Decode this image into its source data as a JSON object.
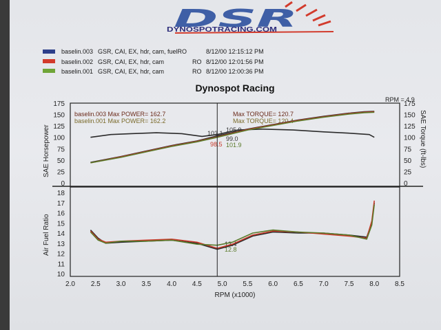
{
  "logo": {
    "mark": "DSR",
    "url_text": "DYNOSPOTRACING.COM"
  },
  "legend": [
    {
      "name": "baselin.003",
      "desc": "GSR, CAI, EX, hdr, cam, fuelRO",
      "date": "8/12/00 12:15:12 PM",
      "color": "#2d3f8a"
    },
    {
      "name": "baselin.002",
      "desc": "GSR, CAI, EX, hdr, cam",
      "mode": "RO",
      "date": "8/12/00 12:01:56 PM",
      "color": "#d23b2c"
    },
    {
      "name": "baselin.001",
      "desc": "GSR, CAI, EX, hdr, cam",
      "mode": "RO",
      "date": "8/12/00 12:00:36 PM",
      "color": "#6fa538"
    }
  ],
  "chart_data": {
    "type": "line",
    "title": "Dynospot Racing",
    "cursor_readout": "RPM = 4.9",
    "xlabel": "RPM (x1000)",
    "xlim": [
      2.0,
      8.5
    ],
    "xticks": [
      "2.0",
      "2.5",
      "3.0",
      "3.5",
      "4.0",
      "4.5",
      "5.0",
      "5.5",
      "6.0",
      "6.5",
      "7.0",
      "7.5",
      "8.0",
      "8.5"
    ],
    "cursor_x": 4.9,
    "top_panel": {
      "ylabel_left": "SAE Horsepower",
      "ylabel_right": "SAE Torque (ft-lbs)",
      "ylim": [
        0,
        175
      ],
      "yticks_left": [
        "175",
        "150",
        "125",
        "100",
        "75",
        "50",
        "25",
        "0"
      ],
      "yticks_right": [
        "175",
        "150",
        "125",
        "100",
        "75",
        "50",
        "25",
        "0"
      ],
      "power_labels": [
        {
          "text": "baselin.003  Max POWER= 162.7",
          "color": "#6a2a1a"
        },
        {
          "text": "baselin.001  Max POWER= 162.2",
          "color": "#7a6a2a"
        }
      ],
      "torque_labels": [
        {
          "text": "Max TORQUE= 120.7",
          "color": "#6a2a1a"
        },
        {
          "text": "Max TORQUE= 120.4",
          "color": "#7a6a2a"
        }
      ],
      "cursor_values": [
        {
          "text": "103.1",
          "color": "#333"
        },
        {
          "text": "105.9",
          "color": "#333"
        },
        {
          "text": "99.0",
          "color": "#333"
        },
        {
          "text": "98.5",
          "color": "#c83a2a"
        },
        {
          "text": "101.9",
          "color": "#5a7a2a"
        }
      ],
      "series": [
        {
          "name": "baselin.003",
          "kind": "power",
          "color": "#2a2a2a",
          "x": [
            2.4,
            3.0,
            3.5,
            4.0,
            4.5,
            4.9,
            5.5,
            6.0,
            6.5,
            7.0,
            7.5,
            7.8,
            8.0
          ],
          "y": [
            45,
            58,
            70,
            82,
            92,
            103,
            118,
            128,
            138,
            146,
            153,
            156,
            157
          ]
        },
        {
          "name": "baselin.003",
          "kind": "torque",
          "color": "#2a2a2a",
          "x": [
            2.4,
            2.8,
            3.2,
            3.7,
            4.2,
            4.6,
            4.9,
            5.3,
            5.8,
            6.4,
            7.0,
            7.5,
            7.9,
            8.0
          ],
          "y": [
            100,
            106,
            108,
            110,
            108,
            102,
            106,
            116,
            118,
            116,
            112,
            109,
            106,
            100
          ]
        },
        {
          "name": "baselin.002",
          "kind": "power",
          "color": "#c83a2a",
          "x": [
            2.4,
            3.0,
            3.5,
            4.0,
            4.5,
            4.9,
            5.5,
            6.0,
            6.5,
            7.0,
            7.5,
            7.8,
            8.0
          ],
          "y": [
            44,
            57,
            69,
            81,
            91,
            101,
            117,
            127,
            137,
            145,
            152,
            155,
            156
          ]
        },
        {
          "name": "baselin.001",
          "kind": "power",
          "color": "#5a7a2a",
          "x": [
            2.4,
            3.0,
            3.5,
            4.0,
            4.5,
            4.9,
            5.5,
            6.0,
            6.5,
            7.0,
            7.5,
            7.8,
            8.0
          ],
          "y": [
            44,
            56,
            68,
            80,
            90,
            100,
            116,
            126,
            136,
            144,
            151,
            154,
            155
          ]
        }
      ]
    },
    "bottom_panel": {
      "ylabel_left": "Air Fuel Ratio",
      "ylim": [
        10,
        18
      ],
      "yticks_left": [
        "18",
        "17",
        "16",
        "15",
        "14",
        "13",
        "12",
        "11",
        "10"
      ],
      "cursor_values": [
        {
          "text": "12.4",
          "color": "#333"
        },
        {
          "text": "12.8",
          "color": "#5a7a2a"
        }
      ],
      "series": [
        {
          "name": "baselin.003",
          "color": "#2a2a2a",
          "x": [
            2.4,
            2.55,
            2.7,
            3.0,
            3.5,
            4.0,
            4.5,
            4.9,
            5.2,
            5.6,
            6.0,
            6.5,
            7.0,
            7.5,
            7.85,
            7.95,
            8.0
          ],
          "y": [
            14.3,
            13.5,
            13.0,
            13.1,
            13.2,
            13.3,
            13.0,
            12.4,
            12.8,
            13.7,
            14.1,
            14.0,
            14.0,
            13.8,
            13.6,
            15.0,
            17.0
          ]
        },
        {
          "name": "baselin.002",
          "color": "#c83a2a",
          "x": [
            2.4,
            2.55,
            2.7,
            3.0,
            3.5,
            4.0,
            4.5,
            4.9,
            5.2,
            5.6,
            6.0,
            6.5,
            7.0,
            7.5,
            7.85,
            7.95,
            8.0
          ],
          "y": [
            14.2,
            13.4,
            13.1,
            13.2,
            13.3,
            13.4,
            13.1,
            12.5,
            12.9,
            13.8,
            14.2,
            14.1,
            13.9,
            13.7,
            13.5,
            15.2,
            17.2
          ]
        },
        {
          "name": "baselin.001",
          "color": "#5a7a2a",
          "x": [
            2.4,
            2.55,
            2.7,
            3.0,
            3.5,
            4.0,
            4.5,
            4.9,
            5.2,
            5.6,
            6.0,
            6.5,
            7.0,
            7.5,
            7.85,
            7.95,
            8.0
          ],
          "y": [
            14.1,
            13.3,
            13.0,
            13.2,
            13.2,
            13.3,
            12.9,
            12.8,
            13.1,
            14.0,
            14.3,
            14.1,
            14.0,
            13.8,
            13.4,
            14.8,
            16.8
          ]
        }
      ]
    }
  }
}
